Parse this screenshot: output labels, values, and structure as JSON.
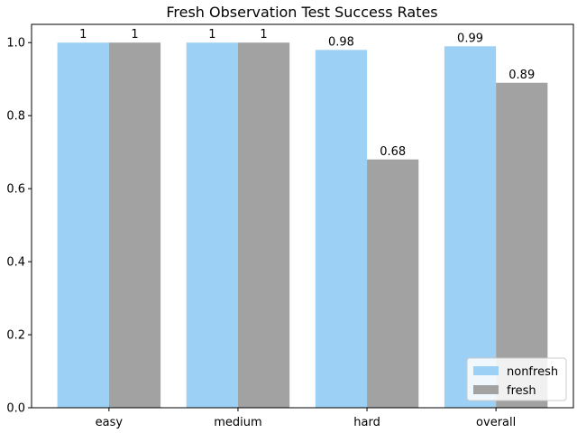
{
  "chart_data": {
    "type": "bar",
    "title": "Fresh Observation Test Success Rates",
    "xlabel": "",
    "ylabel": "",
    "categories": [
      "easy",
      "medium",
      "hard",
      "overall"
    ],
    "series": [
      {
        "name": "nonfresh",
        "values": [
          1,
          1,
          0.98,
          0.99
        ],
        "labels": [
          "1",
          "1",
          "0.98",
          "0.99"
        ],
        "color": "#9dd0f5"
      },
      {
        "name": "fresh",
        "values": [
          1,
          1,
          0.68,
          0.89
        ],
        "labels": [
          "1",
          "1",
          "0.68",
          "0.89"
        ],
        "color": "#a2a2a2"
      }
    ],
    "ylim": [
      0,
      1.05
    ],
    "yticks": [
      {
        "value": 0.0,
        "label": "0.0"
      },
      {
        "value": 0.2,
        "label": "0.2"
      },
      {
        "value": 0.4,
        "label": "0.4"
      },
      {
        "value": 0.6,
        "label": "0.6"
      },
      {
        "value": 0.8,
        "label": "0.8"
      },
      {
        "value": 1.0,
        "label": "1.0"
      }
    ],
    "grid": false,
    "legend_position": "lower-right"
  }
}
